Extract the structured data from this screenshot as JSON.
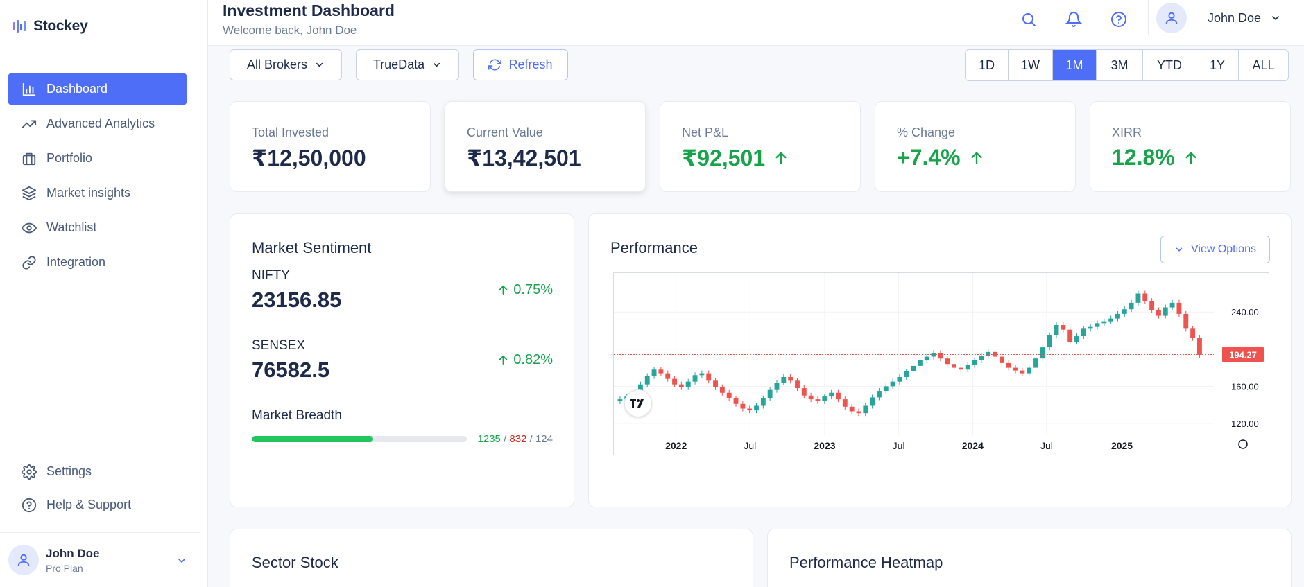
{
  "app": {
    "name": "Stockey"
  },
  "sidebar": {
    "items": [
      {
        "label": "Dashboard",
        "icon": "bar-chart-icon",
        "active": true
      },
      {
        "label": "Advanced Analytics",
        "icon": "trending-up-icon"
      },
      {
        "label": "Portfolio",
        "icon": "briefcase-icon"
      },
      {
        "label": "Market insights",
        "icon": "layers-icon"
      },
      {
        "label": "Watchlist",
        "icon": "eye-icon"
      },
      {
        "label": "Integration",
        "icon": "link-icon"
      }
    ],
    "bottom_items": [
      {
        "label": "Settings",
        "icon": "gear-icon"
      },
      {
        "label": "Help & Support",
        "icon": "help-circle-icon"
      }
    ],
    "user": {
      "name": "John Doe",
      "plan": "Pro Plan"
    }
  },
  "header": {
    "title": "Investment Dashboard",
    "subtitle": "Welcome back, John Doe",
    "user_name": "John Doe"
  },
  "toolbar": {
    "broker_select": "All Brokers",
    "data_source_select": "TrueData",
    "refresh_label": "Refresh",
    "periods": [
      "1D",
      "1W",
      "1M",
      "3M",
      "YTD",
      "1Y",
      "ALL"
    ],
    "active_period": "1M"
  },
  "stats": [
    {
      "label": "Total Invested",
      "value": "₹12,50,000",
      "trend": "none"
    },
    {
      "label": "Current Value",
      "value": "₹13,42,501",
      "trend": "none"
    },
    {
      "label": "Net P&L",
      "value": "₹92,501",
      "trend": "up"
    },
    {
      "label": "% Change",
      "value": "+7.4%",
      "trend": "up"
    },
    {
      "label": "XIRR",
      "value": "12.8%",
      "trend": "up"
    }
  ],
  "sentiment": {
    "title": "Market Sentiment",
    "indices": [
      {
        "name": "NIFTY",
        "value": "23156.85",
        "change": "0.75%"
      },
      {
        "name": "SENSEX",
        "value": "76582.5",
        "change": "0.82%"
      }
    ],
    "breadth": {
      "title": "Market Breadth",
      "advancing": "1235",
      "declining": "832",
      "unchanged": "124",
      "advancing_fraction": 0.565
    }
  },
  "performance": {
    "title": "Performance",
    "view_options_label": "View Options"
  },
  "chart_data": {
    "type": "candlestick",
    "x_labels": [
      "2022",
      "Jul",
      "2023",
      "Jul",
      "2024",
      "Jul",
      "2025"
    ],
    "y_ticks": [
      "120.00",
      "160.00",
      "200.00",
      "240.00"
    ],
    "ylim": [
      108,
      282
    ],
    "last_price": "194.27",
    "up_color": "#26a69a",
    "down_color": "#ef5350",
    "close": [
      146,
      149,
      148,
      162,
      171,
      178,
      174,
      168,
      162,
      159,
      165,
      172,
      174,
      166,
      159,
      153,
      147,
      141,
      136,
      134,
      139,
      147,
      156,
      164,
      170,
      166,
      158,
      150,
      146,
      144,
      149,
      153,
      146,
      138,
      133,
      131,
      139,
      148,
      155,
      160,
      165,
      170,
      176,
      182,
      188,
      192,
      196,
      190,
      184,
      180,
      178,
      183,
      188,
      193,
      197,
      192,
      185,
      180,
      177,
      174,
      180,
      190,
      202,
      215,
      226,
      221,
      208,
      214,
      222,
      224,
      228,
      230,
      233,
      238,
      243,
      250,
      260,
      252,
      242,
      236,
      245,
      250,
      238,
      222,
      212,
      194
    ]
  },
  "sections": {
    "sector_title": "Sector Stock",
    "heatmap_title": "Performance Heatmap"
  },
  "colors": {
    "accent": "#4f6ef7",
    "positive": "#16a34a",
    "negative": "#dc2626"
  }
}
